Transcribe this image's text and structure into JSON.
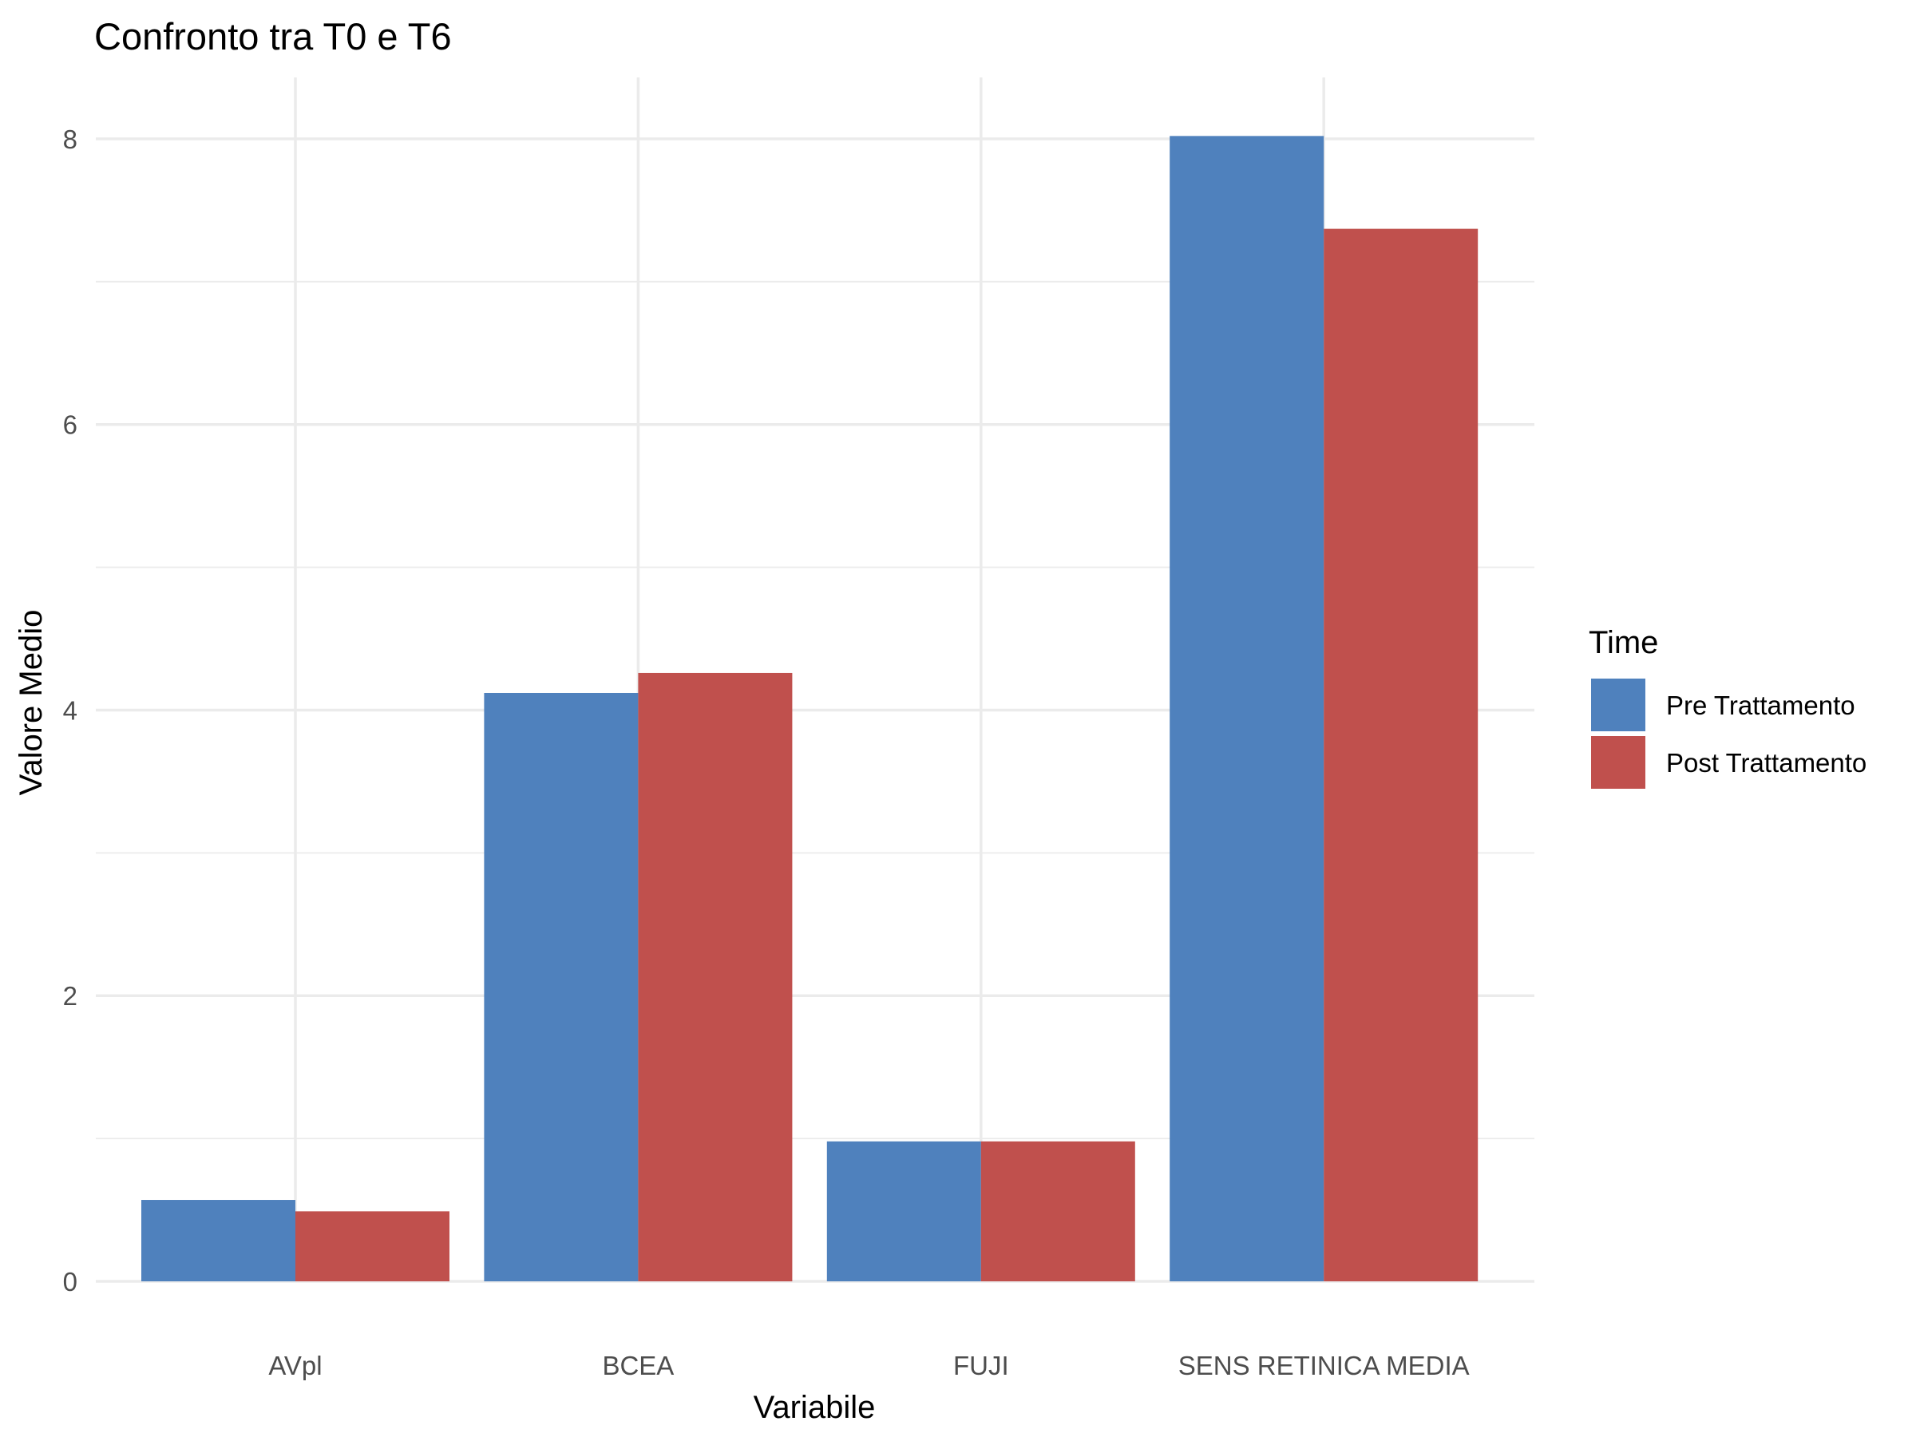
{
  "chart_data": {
    "type": "bar",
    "title": "Confronto tra T0 e T6",
    "xlabel": "Variabile",
    "ylabel": "Valore Medio",
    "categories": [
      "AVpl",
      "BCEA",
      "FUJI",
      "SENS RETINICA MEDIA"
    ],
    "series": [
      {
        "name": "Pre Trattamento",
        "color": "#4f81bd",
        "values": [
          0.57,
          4.12,
          0.98,
          8.02
        ]
      },
      {
        "name": "Post Trattamento",
        "color": "#c0504d",
        "values": [
          0.49,
          4.26,
          0.98,
          7.37
        ]
      }
    ],
    "ylim": [
      0,
      8.43
    ],
    "yticks": [
      0,
      2,
      4,
      6,
      8
    ],
    "grid": true,
    "legend": {
      "title": "Time",
      "position": "right"
    }
  }
}
